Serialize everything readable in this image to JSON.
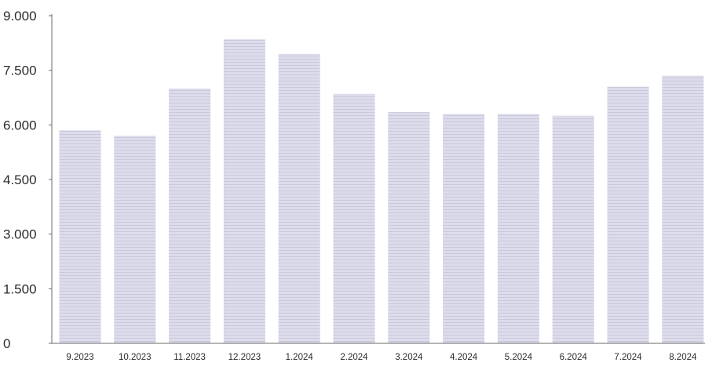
{
  "chart_data": {
    "type": "bar",
    "title": "",
    "xlabel": "",
    "ylabel": "",
    "categories": [
      "9.2023",
      "10.2023",
      "11.2023",
      "12.2023",
      "1.2024",
      "2.2024",
      "3.2024",
      "4.2024",
      "5.2024",
      "6.2024",
      "7.2024",
      "8.2024"
    ],
    "values": [
      5850,
      5700,
      7000,
      8350,
      7950,
      6850,
      6350,
      6300,
      6300,
      6250,
      7050,
      7350
    ],
    "ylim": [
      0,
      9000
    ],
    "yticks": [
      0,
      1500,
      3000,
      4500,
      6000,
      7500,
      9000
    ],
    "ytick_labels": [
      "0",
      "1.500",
      "3.000",
      "4.500",
      "6.000",
      "7.500",
      "9.000"
    ],
    "grid": false,
    "legend": "none",
    "bar_color": "#dcdcec",
    "bar_stripe_color": "#c6c6d8"
  }
}
